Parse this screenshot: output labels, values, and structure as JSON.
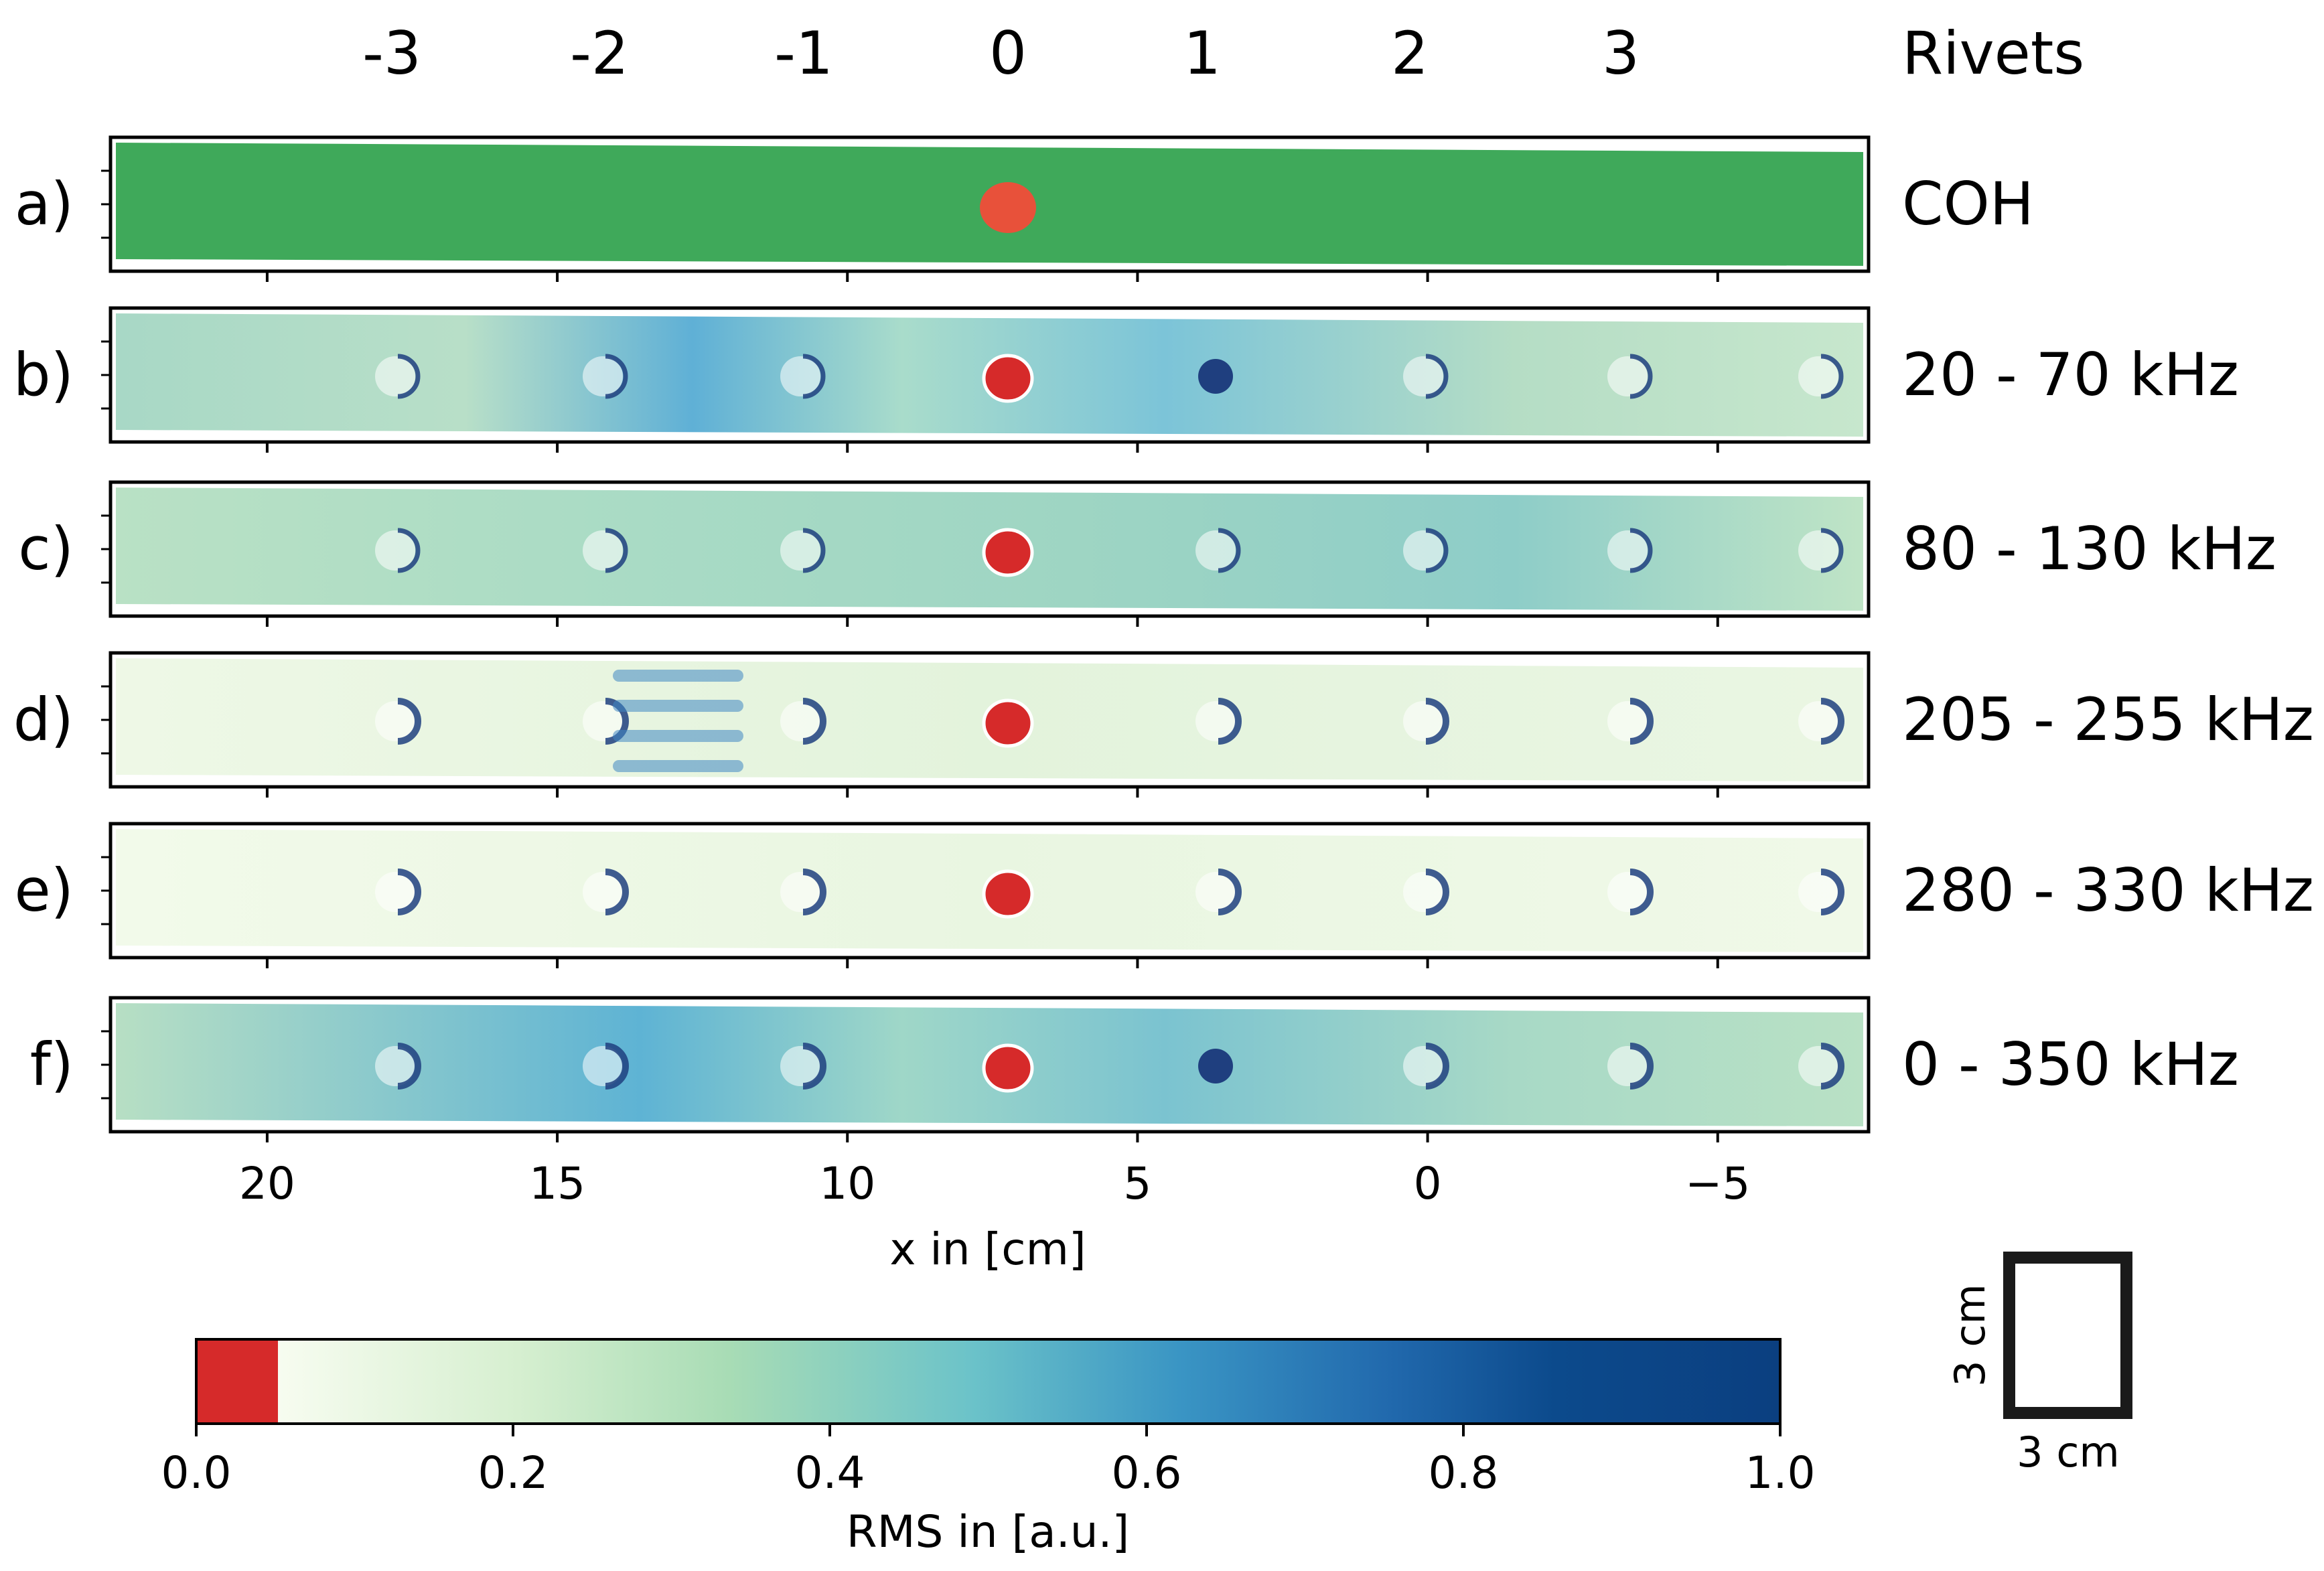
{
  "chart_data": {
    "type": "heatmap",
    "top_header": {
      "label": "Rivets",
      "rivets": [
        "-3",
        "-2",
        "-1",
        "0",
        "1",
        "2",
        "3"
      ]
    },
    "panels": [
      {
        "id": "a)",
        "band": "COH"
      },
      {
        "id": "b)",
        "band": "20 - 70 kHz"
      },
      {
        "id": "c)",
        "band": "80 - 130 kHz"
      },
      {
        "id": "d)",
        "band": "205 - 255 kHz"
      },
      {
        "id": "e)",
        "band": "280 - 330 kHz"
      },
      {
        "id": "f)",
        "band": "0 - 350 kHz"
      }
    ],
    "xaxis": {
      "label": "x in [cm]",
      "range": [
        22.7,
        -7.6
      ],
      "ticks": [
        20,
        15,
        10,
        5,
        0,
        -5
      ],
      "tick_labels": [
        "20",
        "15",
        "10",
        "5",
        "0",
        "−5"
      ]
    },
    "colorbar": {
      "label": "RMS in [a.u.]",
      "range": [
        0.0,
        1.0
      ],
      "ticks": [
        "0.0",
        "0.2",
        "0.4",
        "0.6",
        "0.8",
        "1.0"
      ],
      "tick_values": [
        0.0,
        0.2,
        0.4,
        0.6,
        0.8,
        1.0
      ],
      "red_segment_max": 0.05
    },
    "scale_bar": {
      "width_label": "3 cm",
      "height_label": "3 cm"
    },
    "colors": {
      "coh_green": "#3fa95a",
      "damage_red": "#d62a2a",
      "dark_blue": "#1f3f7f"
    }
  }
}
